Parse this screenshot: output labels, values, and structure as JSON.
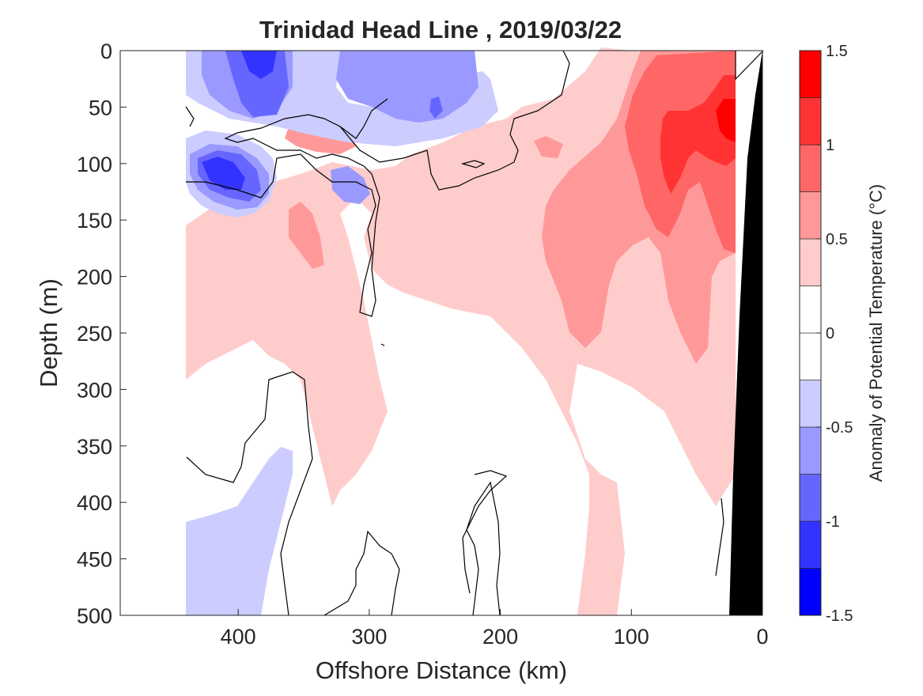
{
  "chart_data": {
    "type": "heatmap",
    "title": "Trinidad Head Line , 2019/03/22",
    "xlabel": "Offshore Distance (km)",
    "ylabel": "Depth (m)",
    "xlim": [
      490,
      0
    ],
    "ylim": [
      0,
      500
    ],
    "x_ticks": [
      400,
      300,
      200,
      100,
      0
    ],
    "y_ticks": [
      0,
      50,
      100,
      150,
      200,
      250,
      300,
      350,
      400,
      450,
      500
    ],
    "colorbar": {
      "label": "Anomaly of Potential Temperature (°C)",
      "ticks": [
        "1.5",
        "1",
        "0.5",
        "0",
        "-0.5",
        "-1",
        "-1.5"
      ],
      "tick_values": [
        1.5,
        1,
        0.5,
        0,
        -0.5,
        -1,
        -1.5
      ],
      "levels": [
        -1.5,
        -1.25,
        -1.0,
        -0.75,
        -0.5,
        -0.25,
        0.25,
        0.5,
        0.75,
        1.0,
        1.25,
        1.5
      ],
      "colors": [
        "#0000ff",
        "#3333ff",
        "#6666ff",
        "#9999ff",
        "#ccccff",
        "#ffffff",
        "#ffcccc",
        "#ff9999",
        "#ff6666",
        "#ff3333",
        "#ff0000"
      ]
    },
    "grid": false,
    "regions": [
      {
        "name": "cold-near-surface-offshore",
        "level": -1.0,
        "color": "#6666ff",
        "points": [
          [
            380,
            0
          ],
          [
            360,
            0
          ],
          [
            348,
            30
          ],
          [
            350,
            55
          ],
          [
            385,
            60
          ],
          [
            400,
            40
          ]
        ]
      },
      {
        "name": "cold-core-surface",
        "level": -1.25,
        "color": "#3333ff",
        "points": [
          [
            385,
            0
          ],
          [
            365,
            0
          ],
          [
            372,
            20
          ],
          [
            382,
            20
          ]
        ]
      },
      {
        "name": "cold-lens-mid",
        "level": -0.75,
        "color": "#9999ff",
        "points": [
          [
            325,
            10
          ],
          [
            245,
            5
          ],
          [
            215,
            30
          ],
          [
            240,
            60
          ],
          [
            290,
            60
          ],
          [
            320,
            45
          ]
        ]
      },
      {
        "name": "cold-lens-subsurface",
        "level": -1.0,
        "color": "#6666ff",
        "points": [
          [
            440,
            100
          ],
          [
            400,
            85
          ],
          [
            360,
            95
          ],
          [
            350,
            120
          ],
          [
            370,
            135
          ],
          [
            410,
            135
          ],
          [
            440,
            115
          ]
        ]
      },
      {
        "name": "warm-nearshore-core",
        "level": 1.0,
        "color": "#ff3333",
        "points": [
          [
            85,
            80
          ],
          [
            65,
            55
          ],
          [
            30,
            45
          ],
          [
            25,
            100
          ],
          [
            40,
            140
          ],
          [
            75,
            125
          ],
          [
            80,
            100
          ]
        ]
      },
      {
        "name": "warm-nearshore",
        "level": 0.75,
        "color": "#ff6666",
        "points": [
          [
            105,
            50
          ],
          [
            70,
            5
          ],
          [
            20,
            5
          ],
          [
            20,
            160
          ],
          [
            55,
            165
          ],
          [
            80,
            135
          ],
          [
            100,
            95
          ]
        ]
      }
    ],
    "contours": [
      {
        "level": 0,
        "points": [
          [
            440,
            340
          ],
          [
            415,
            390
          ],
          [
            350,
            390
          ],
          [
            342,
            370
          ],
          [
            360,
            330
          ],
          [
            355,
            300
          ]
        ]
      },
      {
        "level": 0,
        "points": [
          [
            215,
            360
          ],
          [
            195,
            420
          ],
          [
            195,
            500
          ]
        ]
      },
      {
        "level": 0,
        "points": [
          [
            300,
            420
          ],
          [
            285,
            460
          ],
          [
            275,
            500
          ]
        ]
      }
    ],
    "bathymetry_label": "continental slope"
  }
}
